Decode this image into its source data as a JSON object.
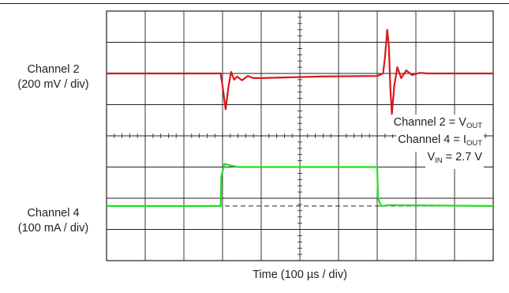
{
  "chart_data": {
    "type": "line",
    "xlabel": "Time (100 µs / div)",
    "grid": true,
    "divisions": {
      "x": 10,
      "y": 8
    },
    "channels": [
      {
        "label": "Channel 2",
        "scale": "(200 mV / div)",
        "color": "#d7191c"
      },
      {
        "label": "Channel 4",
        "scale": "(100 mA / div)",
        "color": "#22dd22"
      }
    ],
    "annotations": [
      {
        "text": "Channel 2 = V",
        "sub": "OUT",
        "suffix": ""
      },
      {
        "text": "Channel 4 = I",
        "sub": "OUT",
        "suffix": ""
      },
      {
        "text": "V",
        "sub": "IN",
        "suffix": " = 2.7 V"
      }
    ],
    "series": [
      {
        "name": "Channel 2",
        "color": "#d7191c",
        "x": [
          0,
          2.95,
          3.0,
          3.08,
          3.15,
          3.22,
          3.3,
          3.38,
          3.5,
          3.65,
          3.8,
          4.0,
          5.5,
          7.0,
          7.15,
          7.2,
          7.26,
          7.3,
          7.34,
          7.38,
          7.44,
          7.52,
          7.62,
          7.75,
          7.9,
          8.1,
          8.3,
          10
        ],
        "y": [
          6.0,
          6.0,
          5.6,
          4.85,
          5.55,
          6.05,
          5.8,
          5.9,
          5.78,
          5.92,
          5.85,
          5.85,
          5.9,
          5.92,
          6.0,
          6.5,
          7.4,
          6.9,
          5.5,
          4.7,
          5.6,
          6.2,
          5.85,
          6.1,
          5.95,
          6.02,
          6.0,
          6.0
        ]
      },
      {
        "name": "Channel 4",
        "color": "#22dd22",
        "x": [
          0,
          2.95,
          2.97,
          3.05,
          3.2,
          3.4,
          7.0,
          7.02,
          7.1,
          7.3,
          10
        ],
        "y": [
          1.75,
          1.75,
          2.7,
          3.1,
          3.05,
          3.0,
          3.0,
          2.0,
          1.75,
          1.78,
          1.75
        ]
      }
    ],
    "reference_lines_div": [
      1.75,
      6.0
    ]
  }
}
